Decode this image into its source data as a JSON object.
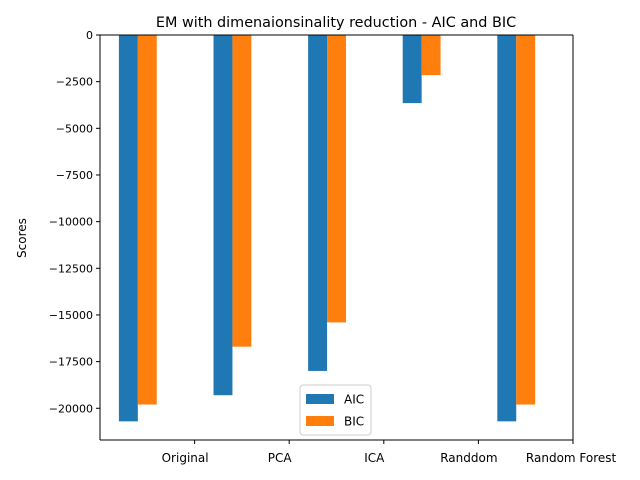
{
  "chart_data": {
    "type": "bar",
    "title": "EM with dimenaionsinality reduction - AIC and BIC",
    "xlabel": "",
    "ylabel": "Scores",
    "categories": [
      "Original",
      "PCA",
      "ICA",
      "Randdom",
      "Random Forest"
    ],
    "series": [
      {
        "name": "AIC",
        "color": "#1f77b4",
        "values": [
          -20700,
          -19300,
          -18000,
          -3650,
          -20700
        ]
      },
      {
        "name": "BIC",
        "color": "#ff7f0e",
        "values": [
          -19800,
          -16700,
          -15400,
          -2150,
          -19800
        ]
      }
    ],
    "ylim": [
      -21700,
      0
    ],
    "yticks": [
      0,
      -2500,
      -5000,
      -7500,
      -10000,
      -12500,
      -15000,
      -17500,
      -20000
    ],
    "ytick_labels": [
      "0",
      "−2500",
      "−5000",
      "−7500",
      "−10000",
      "−12500",
      "−15000",
      "−17500",
      "−20000"
    ],
    "grid": false,
    "legend_position": "bottom-center"
  }
}
